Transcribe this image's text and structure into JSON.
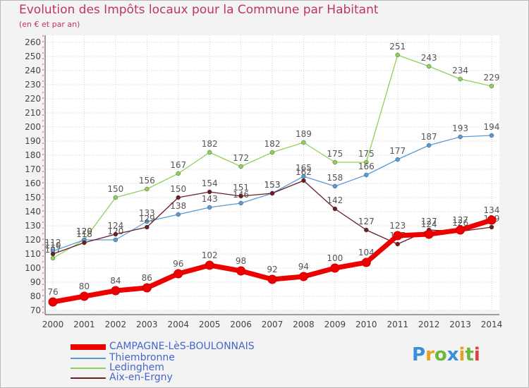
{
  "title": "Evolution des Impôts locaux pour la Commune par Habitant",
  "subtitle": "(en € et par an)",
  "logo": {
    "letters": [
      "P",
      "r",
      "o",
      "x",
      "i",
      "t",
      "i"
    ],
    "colors": [
      "#3a8fd6",
      "#e8a020",
      "#6cb83a",
      "#3a8fd6",
      "#e8a020",
      "#6cb83a",
      "#e04040"
    ]
  },
  "colors": {
    "CAMPAGNE-LèS-BOULONNAIS": "#ee0000",
    "Thiembronne": "#5a9bd5",
    "Ledinghem": "#8fd05a",
    "Aix-en-Ergny": "#6b1f25",
    "grid": "#d0d0d0",
    "axis_text": "#444444"
  },
  "chart_data": {
    "type": "line",
    "title": "Evolution des Impôts locaux pour la Commune par Habitant",
    "subtitle": "(en € et par an)",
    "xlabel": "",
    "ylabel": "",
    "categories": [
      "2000",
      "2001",
      "2002",
      "2003",
      "2004",
      "2005",
      "2006",
      "2007",
      "2008",
      "2009",
      "2010",
      "2011",
      "2012",
      "2013",
      "2014"
    ],
    "ylim": [
      70,
      260
    ],
    "yticks": [
      70,
      80,
      90,
      100,
      110,
      120,
      130,
      140,
      150,
      160,
      170,
      180,
      190,
      200,
      210,
      220,
      230,
      240,
      250,
      260
    ],
    "grid": true,
    "legend_position": "bottom-left",
    "series": [
      {
        "name": "Ledinghem",
        "values": [
          107,
          120,
          150,
          156,
          167,
          182,
          172,
          182,
          189,
          175,
          175,
          251,
          243,
          234,
          229
        ]
      },
      {
        "name": "Thiembronne",
        "values": [
          112,
          120,
          120,
          133,
          138,
          143,
          146,
          153,
          165,
          158,
          166,
          177,
          187,
          193,
          194
        ]
      },
      {
        "name": "Aix-en-Ergny",
        "values": [
          110,
          118,
          124,
          129,
          150,
          154,
          151,
          153,
          162,
          142,
          127,
          117,
          127,
          126,
          129
        ]
      },
      {
        "name": "CAMPAGNE-LèS-BOULONNAIS",
        "values": [
          76,
          80,
          84,
          86,
          96,
          102,
          98,
          92,
          94,
          100,
          104,
          123,
          124,
          127,
          134
        ]
      }
    ]
  },
  "legend": {
    "items": [
      {
        "label": "CAMPAGNE-LèS-BOULONNAIS"
      },
      {
        "label": "Thiembronne"
      },
      {
        "label": "Ledinghem"
      },
      {
        "label": "Aix-en-Ergny"
      }
    ]
  }
}
